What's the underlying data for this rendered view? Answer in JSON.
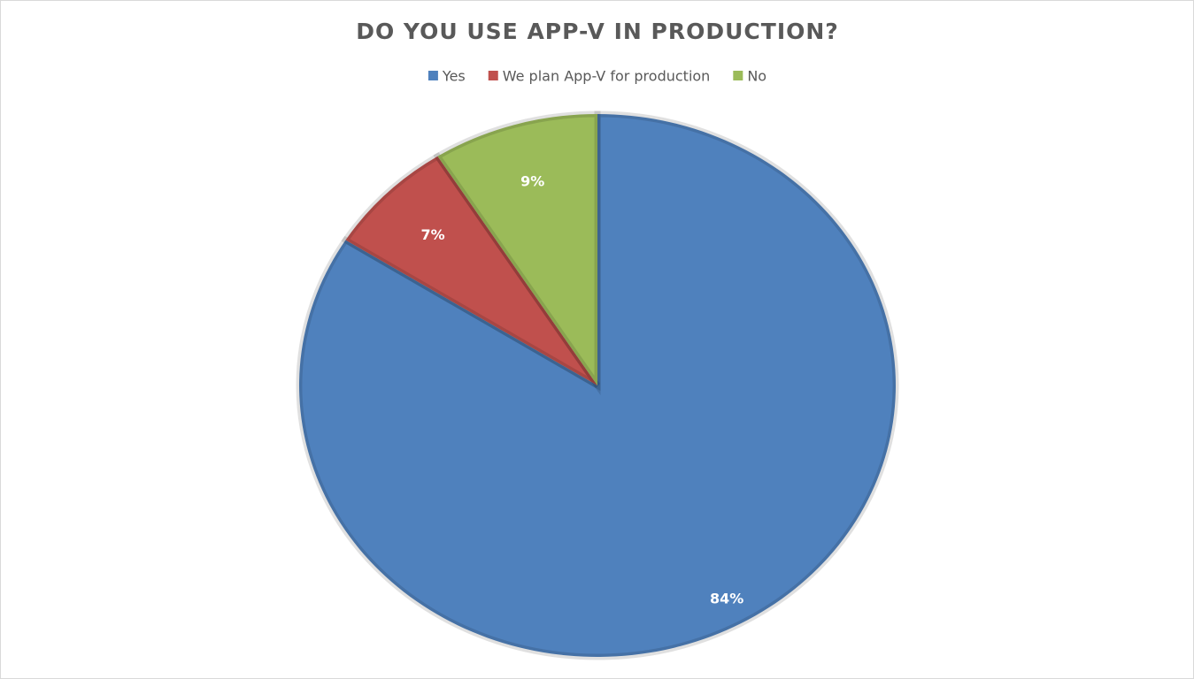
{
  "chart_data": {
    "type": "pie",
    "title": "DO YOU USE APP-V IN PRODUCTION?",
    "categories": [
      "Yes",
      "We plan App-V for production",
      "No"
    ],
    "values": [
      84,
      7,
      9
    ],
    "value_labels": [
      "84%",
      "7%",
      "9%"
    ],
    "colors": [
      "#4f81bd",
      "#c0504d",
      "#9bbb59"
    ],
    "legend": "top"
  }
}
